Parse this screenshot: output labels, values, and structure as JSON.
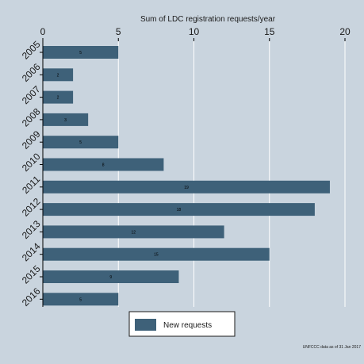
{
  "chart_data": {
    "type": "bar",
    "orientation": "horizontal",
    "title": "Sum of LDC registration requests/year",
    "categories": [
      "2005",
      "2006",
      "2007",
      "2008",
      "2009",
      "2010",
      "2011",
      "2012",
      "2013",
      "2014",
      "2015",
      "2016"
    ],
    "series": [
      {
        "name": "New requests",
        "values": [
          5,
          2,
          2,
          3,
          5,
          8,
          19,
          18,
          12,
          15,
          9,
          5
        ]
      }
    ],
    "xlim": [
      0,
      20
    ],
    "xticks": [
      0,
      5,
      10,
      15,
      20
    ],
    "grid": "vertical",
    "legend_position": "bottom",
    "note": "UNFCCC data as of 31 Jan 2017",
    "colors": {
      "background": "#c9d4de",
      "plot_background": "#c9d4de",
      "bar": "#3e6179",
      "grid": "#ffffff",
      "axis": "#000000"
    }
  }
}
